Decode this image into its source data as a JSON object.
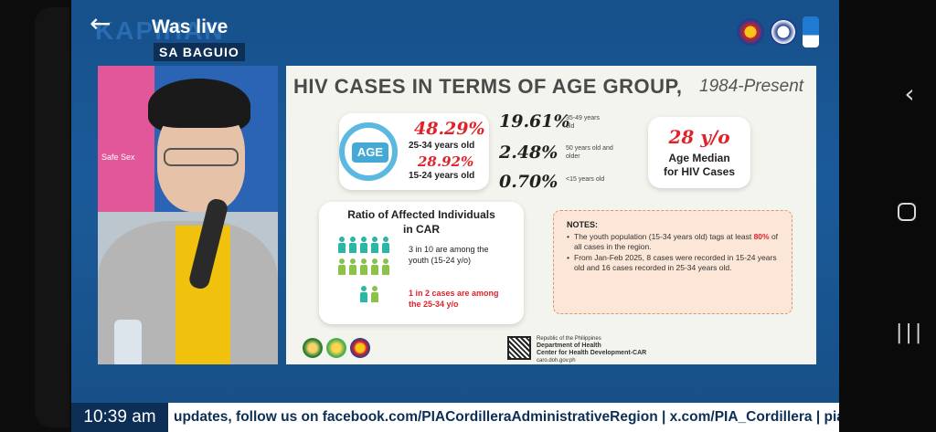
{
  "header": {
    "brand_text": "KAPIHAN",
    "live_label": "Was live",
    "sub_brand": "SA BAGUIO"
  },
  "presenter": {
    "panel_text": "Safe Sex"
  },
  "slide": {
    "title": "HIV CASES IN TERMS OF AGE GROUP,",
    "subtitle": "1984-Present",
    "age_badge": "AGE",
    "stats": [
      {
        "value": "48.29%",
        "label": "25-34 years old"
      },
      {
        "value": "28.92%",
        "label": "15-24 years old"
      },
      {
        "value": "19.61%",
        "label": "35-49 years old"
      },
      {
        "value": "2.48%",
        "label": "50 years old and older"
      },
      {
        "value": "0.70%",
        "label": "<15 years old"
      }
    ],
    "median": {
      "value": "28 y/o",
      "label_line1": "Age Median",
      "label_line2": "for HIV Cases"
    },
    "ratio": {
      "title_line1": "Ratio of Affected  Individuals",
      "title_line2": "in CAR",
      "line1a": "3 in 10 are among the",
      "line1b": "youth (15-24 y/o)",
      "line2a": "1 in 2 cases are among",
      "line2b": "the 25-34 y/o"
    },
    "notes": {
      "title": "NOTES:",
      "item1_pre": "The youth population (15-34 years old) tags at least ",
      "item1_bold": "80%",
      "item1_post": " of all cases in the region.",
      "item2": "From Jan-Feb 2025, 8 cases were recorded in 15-24 years old and 16 cases recorded in 25-34 years old."
    },
    "footer": {
      "doh_line1": "Republic of the Philippines",
      "doh_line2": "Department of Health",
      "doh_line3": "Center for Health Development-CAR",
      "doh_line4": "caro.doh.gov.ph"
    }
  },
  "ticker": {
    "time": "10:39 am",
    "text": "updates, follow us on facebook.com/PIACordilleraAdministrativeRegion  |  x.com/PIA_Cordillera  |  pia.gov.ph"
  },
  "colors": {
    "accent_red": "#e0232b",
    "brand_navy": "#0d2f55",
    "teal_icon": "#2bb6a5",
    "green_icon": "#8bc34a"
  },
  "icons": {
    "nav_back": "chevron-left-icon",
    "nav_home": "home-square-icon",
    "nav_recent": "recent-apps-icon"
  }
}
